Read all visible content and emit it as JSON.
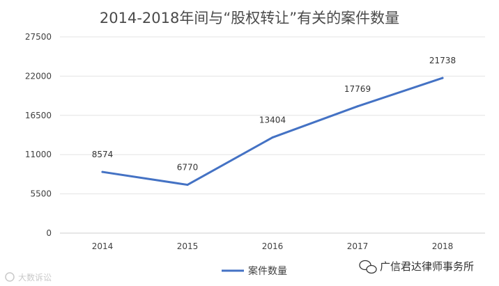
{
  "chart_data": {
    "type": "line",
    "title": "2014-2018年间与“股权转让”有关的案件数量",
    "xlabel": "",
    "ylabel": "",
    "categories": [
      "2014",
      "2015",
      "2016",
      "2017",
      "2018"
    ],
    "series": [
      {
        "name": "案件数量",
        "values": [
          8574,
          6770,
          13404,
          17769,
          21738
        ],
        "color": "#4472c4"
      }
    ],
    "ylim": [
      0,
      27500
    ],
    "yticks": [
      "0",
      "5500",
      "11000",
      "16500",
      "22000",
      "27500"
    ],
    "grid": true,
    "legend": "bottom"
  },
  "watermark_right": "广信君达律师事务所",
  "watermark_left": "大数诉讼"
}
